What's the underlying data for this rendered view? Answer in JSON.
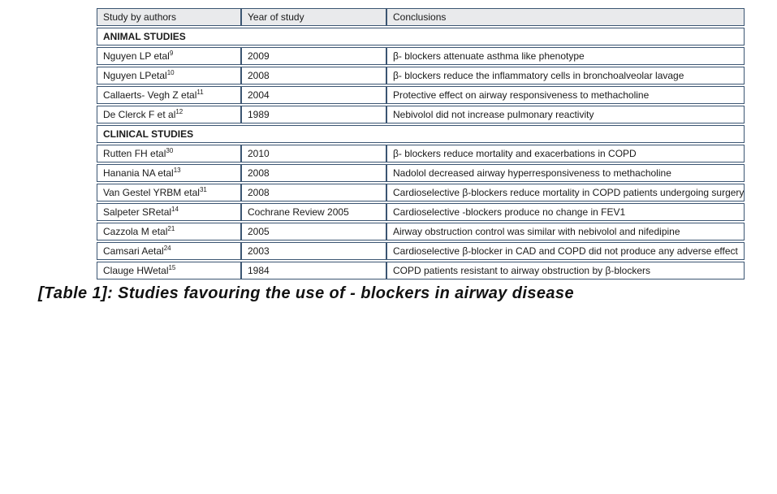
{
  "table": {
    "columns": [
      "Study by authors",
      "Year of study",
      "Conclusions"
    ],
    "sections": [
      {
        "title": "ANIMAL STUDIES",
        "rows": [
          {
            "author": "Nguyen LP etal",
            "ref": "9",
            "year": "2009",
            "conclusion": "β- blockers attenuate asthma like phenotype"
          },
          {
            "author": "Nguyen LPetal",
            "ref": "10",
            "year": "2008",
            "conclusion": "β- blockers reduce the inflammatory cells in bronchoalveolar lavage"
          },
          {
            "author": "Callaerts- Vegh Z etal",
            "ref": "11",
            "year": "2004",
            "conclusion": "Protective effect on airway responsiveness to methacholine"
          },
          {
            "author": "De Clerck F et al",
            "ref": "12",
            "year": "1989",
            "conclusion": "Nebivolol did not increase pulmonary reactivity"
          }
        ]
      },
      {
        "title": "CLINICAL STUDIES",
        "rows": [
          {
            "author": "Rutten FH etal",
            "ref": "30",
            "year": "2010",
            "conclusion": "β- blockers reduce mortality and exacerbations in COPD"
          },
          {
            "author": "Hanania NA etal",
            "ref": "13",
            "year": "2008",
            "conclusion": "Nadolol decreased airway hyperresponsiveness to methacholine"
          },
          {
            "author": "Van Gestel YRBM etal",
            "ref": "31",
            "year": "2008",
            "conclusion": "Cardioselective β-blockers reduce mortality in COPD patients undergoing surgery"
          },
          {
            "author": "Salpeter SRetal",
            "ref": "14",
            "year": "Cochrane Review 2005",
            "conclusion": "Cardioselective -blockers produce no change in FEV1"
          },
          {
            "author": "Cazzola M etal",
            "ref": "21",
            "year": "2005",
            "conclusion": "Airway obstruction control was similar with nebivolol and nifedipine"
          },
          {
            "author": "Camsari Aetal",
            "ref": "24",
            "year": "2003",
            "conclusion": "Cardioselective β-blocker in CAD and COPD did not produce any adverse effect"
          },
          {
            "author": "Clauge HWetal",
            "ref": "15",
            "year": "1984",
            "conclusion": "COPD patients resistant to airway obstruction by β-blockers"
          }
        ]
      }
    ]
  },
  "caption": "[Table 1]: Studies favouring the use of - blockers in airway disease",
  "colors": {
    "border": "#3b5572",
    "header_bg": "#e9eaec",
    "text": "#1a1a1a"
  }
}
